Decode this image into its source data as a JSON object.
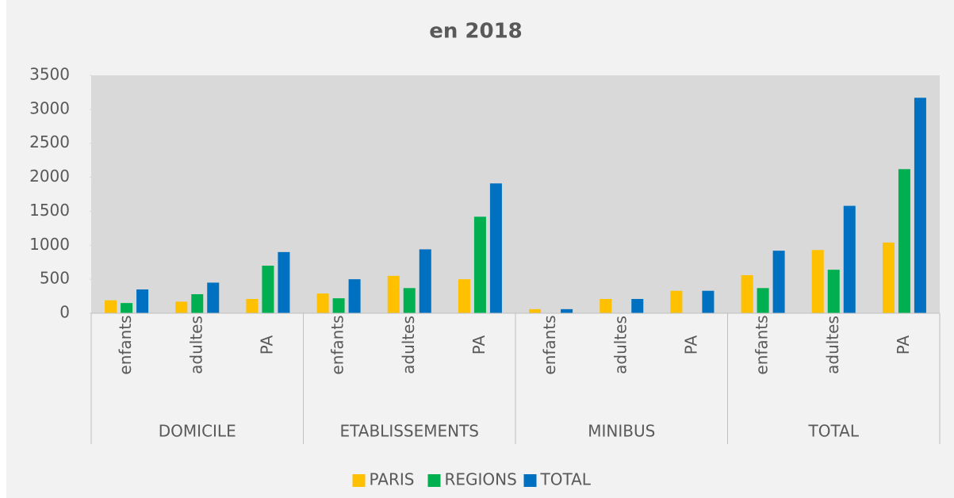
{
  "chart_data": {
    "type": "bar",
    "title": "en 2018",
    "groups": [
      {
        "name": "DOMICILE",
        "categories": [
          "enfants",
          "adultes",
          "PA"
        ]
      },
      {
        "name": "ETABLISSEMENTS",
        "categories": [
          "enfants",
          "adultes",
          "PA"
        ]
      },
      {
        "name": "MINIBUS",
        "categories": [
          "enfants",
          "adultes",
          "PA"
        ]
      },
      {
        "name": "TOTAL",
        "categories": [
          "enfants",
          "adultes",
          "PA"
        ]
      }
    ],
    "series": [
      {
        "name": "PARIS",
        "color": "#ffc000",
        "values": [
          190,
          170,
          210,
          290,
          550,
          500,
          60,
          210,
          330,
          560,
          930,
          1040
        ]
      },
      {
        "name": "REGIONS",
        "color": "#00b050",
        "values": [
          150,
          280,
          700,
          220,
          370,
          1420,
          0,
          0,
          0,
          370,
          640,
          2120
        ]
      },
      {
        "name": "TOTAL",
        "color": "#0070c0",
        "values": [
          350,
          450,
          900,
          500,
          940,
          1910,
          60,
          210,
          330,
          920,
          1580,
          3170
        ]
      }
    ],
    "ylim": [
      0,
      3500
    ],
    "yticks": [
      0,
      500,
      1000,
      1500,
      2000,
      2500,
      3000,
      3500
    ],
    "legend": "bottom"
  }
}
